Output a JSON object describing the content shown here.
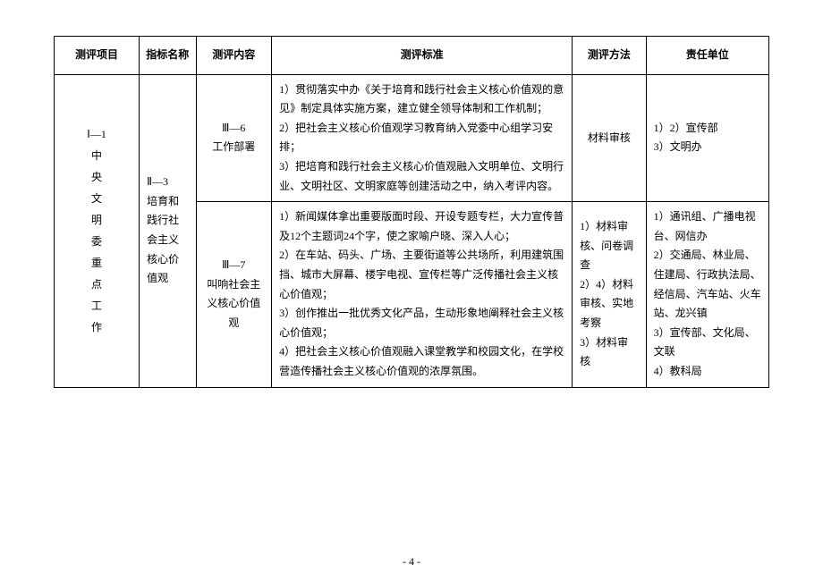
{
  "headers": {
    "col1": "测评项目",
    "col2": "指标名称",
    "col3": "测评内容",
    "col4": "测评标准",
    "col5": "测评方法",
    "col6": "责任单位"
  },
  "rows": {
    "project": "Ⅰ—1\n中\n央\n文\n明\n委\n重\n点\n工\n作",
    "indicator": "Ⅱ—3\n培育和践行社会主义核心价值观",
    "row1": {
      "content": "Ⅲ—6\n工作部署",
      "standard": "1）贯彻落实中办《关于培育和践行社会主义核心价值观的意见》制定具体实施方案，建立健全领导体制和工作机制；\n2）把社会主义核心价值观学习教育纳入党委中心组学习安排；\n3）把培育和践行社会主义核心价值观融入文明单位、文明行业、文明社区、文明家庭等创建活动之中，纳入考评内容。",
      "method": "材料审核",
      "unit": "1）2）宣传部\n3）文明办"
    },
    "row2": {
      "content": "Ⅲ—7\n叫响社会主义核心价值观",
      "standard": "1）新闻媒体拿出重要版面时段、开设专题专栏，大力宣传普及12个主题词24个字，使之家喻户晓、深入人心；\n2）在车站、码头、广场、主要街道等公共场所，利用建筑围挡、城市大屏幕、楼宇电视、宣传栏等广泛传播社会主义核心价值观；\n3）创作推出一批优秀文化产品，生动形象地阐释社会主义核心价值观；\n4）把社会主义核心价值观融入课堂教学和校园文化，在学校营造传播社会主义核心价值观的浓厚氛围。",
      "method": "1）材料审核、问卷调查\n2）4）材料审核、实地考察\n3）材料审核",
      "unit": "1）通讯组、广播电视台、网信办\n2）交通局、林业局、住建局、行政执法局、经信局、汽车站、火车站、龙兴镇\n3）宣传部、文化局、文联\n4）教科局"
    }
  },
  "footer": "- 4 -"
}
